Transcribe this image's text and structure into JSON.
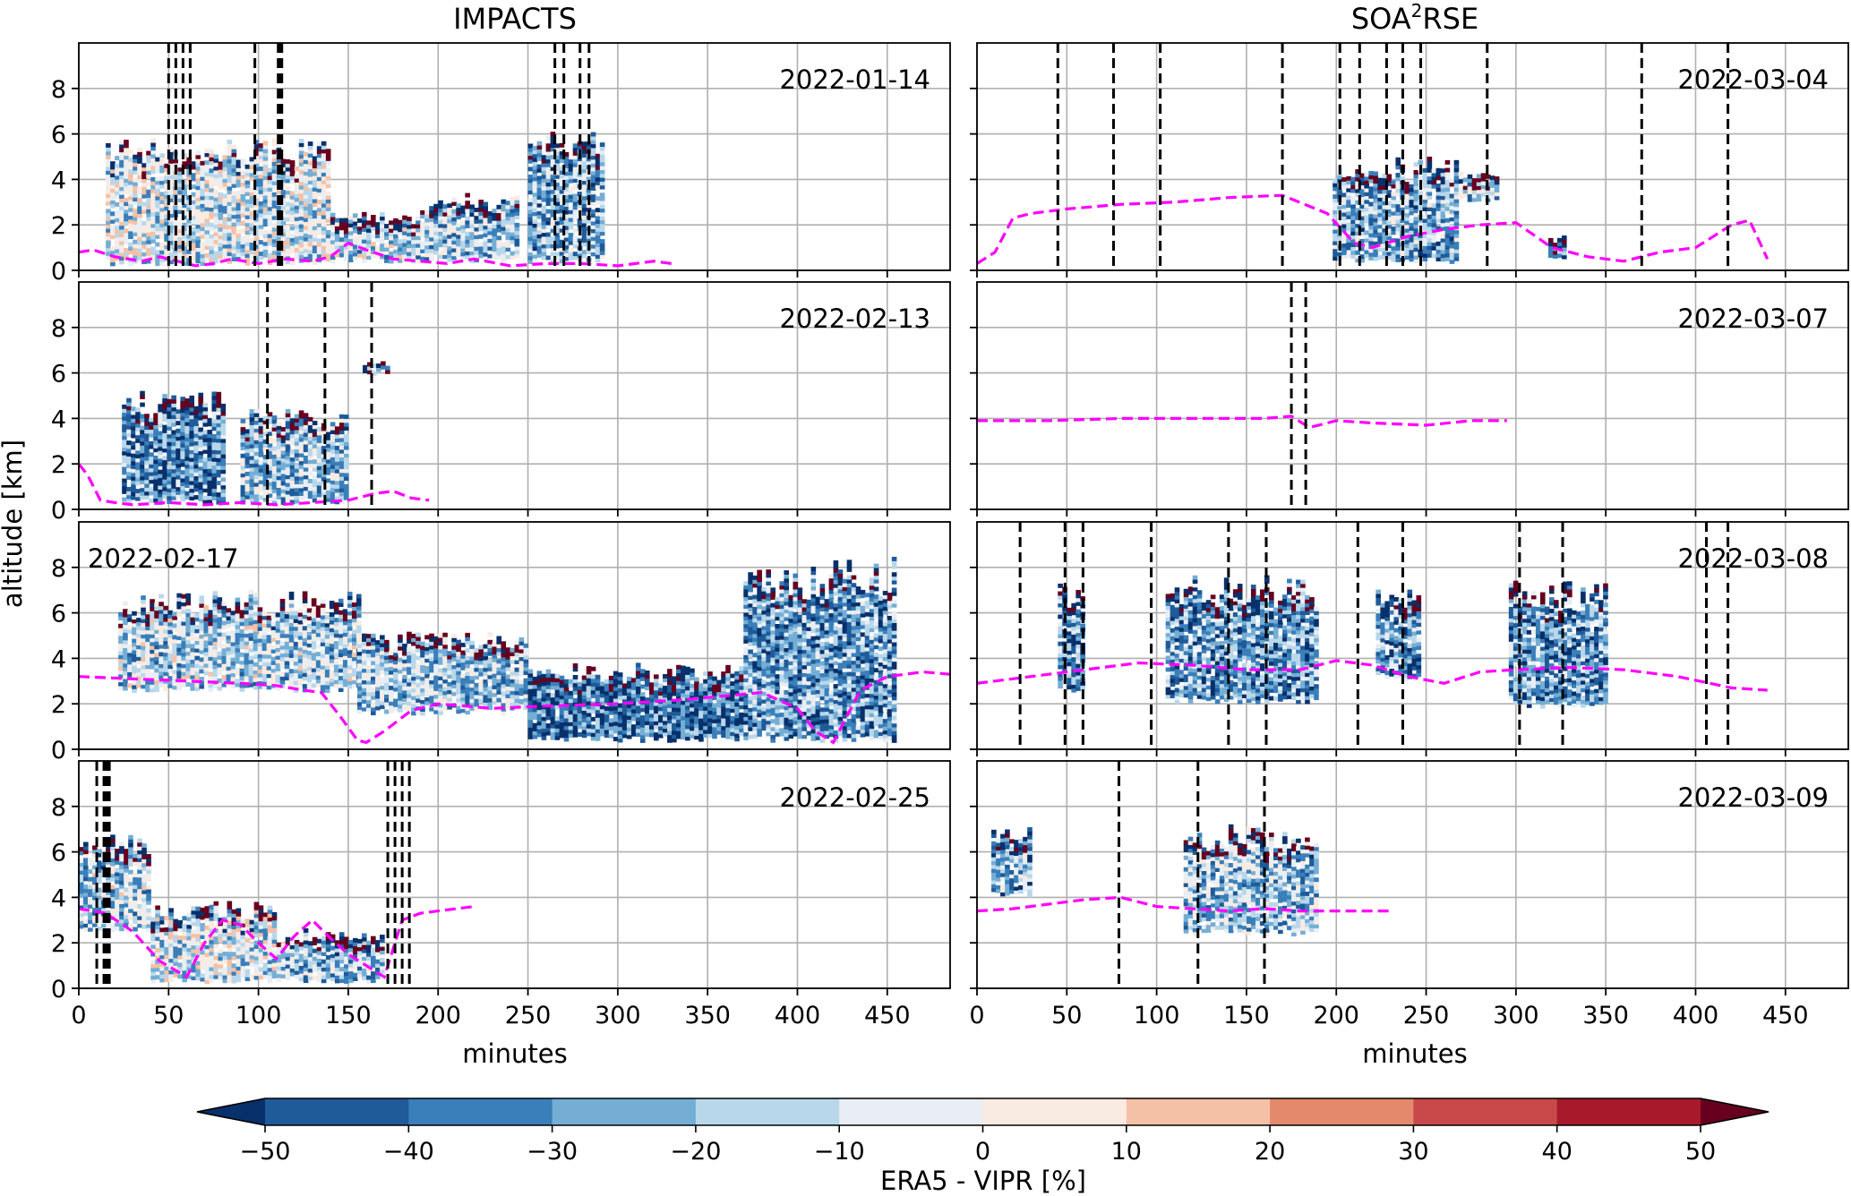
{
  "chart_data": {
    "type": "heatmap",
    "columns": [
      {
        "title": "IMPACTS",
        "title_sup": "",
        "title_rest": ""
      },
      {
        "title": "SOA",
        "title_sup": "2",
        "title_rest": "RSE"
      }
    ],
    "xlabel": "minutes",
    "ylabel": "altitude [km]",
    "xlim": [
      0,
      485
    ],
    "ylim": [
      0,
      10
    ],
    "xticks": [
      0,
      50,
      100,
      150,
      200,
      250,
      300,
      350,
      400,
      450
    ],
    "yticks": [
      0,
      2,
      4,
      6,
      8
    ],
    "grid": true,
    "colorbar": {
      "label": "ERA5 - VIPR [%]",
      "ticks": [
        -50,
        -40,
        -30,
        -20,
        -10,
        0,
        10,
        20,
        30,
        40,
        50
      ],
      "tick_labels": [
        "−50",
        "−40",
        "−30",
        "−20",
        "−10",
        "0",
        "10",
        "20",
        "30",
        "40",
        "50"
      ],
      "colors": [
        "#1f5b99",
        "#3a7fba",
        "#75aed4",
        "#b9d7ea",
        "#e8eef3",
        "#faebe2",
        "#f5c1a6",
        "#e5896c",
        "#c9494a",
        "#a8192c"
      ],
      "under_color": "#08306b",
      "over_color": "#67001f",
      "extend": "both",
      "orientation": "horizontal",
      "location": "bottom"
    },
    "panels": [
      {
        "column": 0,
        "row": 0,
        "date": "2022-01-14",
        "date_position": "top-right",
        "vlines": [
          50,
          54,
          58,
          62,
          98,
          111,
          112,
          113,
          265,
          270,
          279,
          284
        ],
        "freezing_level": {
          "x": [
            0,
            8,
            20,
            35,
            45,
            55,
            65,
            75,
            85,
            100,
            115,
            130,
            140,
            150,
            160,
            175,
            190,
            205,
            220,
            240,
            260,
            280,
            300,
            320,
            330
          ],
          "y": [
            0.8,
            0.9,
            0.6,
            0.4,
            0.6,
            0.4,
            0.2,
            0.3,
            0.5,
            0.3,
            0.5,
            0.4,
            0.6,
            1.2,
            0.9,
            0.5,
            0.4,
            0.3,
            0.5,
            0.2,
            0.3,
            0.3,
            0.2,
            0.4,
            0.3
          ]
        },
        "echo": [
          {
            "x": [
              15,
              140
            ],
            "y": [
              0.2,
              5.8
            ],
            "bias": -0.1
          },
          {
            "x": [
              140,
              190
            ],
            "y": [
              0.3,
              2.5
            ],
            "bias": -0.15
          },
          {
            "x": [
              190,
              245
            ],
            "y": [
              0.3,
              3.3
            ],
            "bias": -0.2
          },
          {
            "x": [
              250,
              292
            ],
            "y": [
              0.3,
              6.1
            ],
            "bias": -0.25
          }
        ]
      },
      {
        "column": 0,
        "row": 1,
        "date": "2022-02-13",
        "date_position": "top-right",
        "vlines": [
          105,
          137,
          163
        ],
        "freezing_level": {
          "x": [
            0,
            5,
            12,
            20,
            30,
            50,
            70,
            90,
            110,
            130,
            150,
            165,
            175,
            185,
            195
          ],
          "y": [
            2.0,
            1.5,
            0.4,
            0.3,
            0.2,
            0.3,
            0.2,
            0.3,
            0.2,
            0.3,
            0.4,
            0.7,
            0.8,
            0.5,
            0.4
          ]
        },
        "echo": [
          {
            "x": [
              24,
              80
            ],
            "y": [
              0.2,
              5.1
            ],
            "bias": -0.35
          },
          {
            "x": [
              90,
              150
            ],
            "y": [
              0.2,
              4.4
            ],
            "bias": -0.2
          },
          {
            "x": [
              158,
              172
            ],
            "y": [
              5.9,
              6.4
            ],
            "bias": -0.3
          }
        ]
      },
      {
        "column": 0,
        "row": 2,
        "date": "2022-02-17",
        "date_position": "top-left",
        "vlines": [],
        "freezing_level": {
          "x": [
            0,
            30,
            60,
            90,
            110,
            125,
            135,
            145,
            155,
            160,
            170,
            185,
            200,
            230,
            260,
            300,
            340,
            380,
            400,
            410,
            420,
            435,
            450,
            470,
            485
          ],
          "y": [
            3.2,
            3.1,
            3.0,
            2.9,
            2.8,
            2.6,
            2.5,
            1.5,
            0.4,
            0.3,
            0.8,
            1.7,
            2.0,
            1.8,
            1.9,
            2.0,
            2.2,
            2.5,
            1.8,
            0.8,
            0.3,
            2.6,
            3.2,
            3.4,
            3.3
          ]
        },
        "echo": [
          {
            "x": [
              22,
              155
            ],
            "y": [
              2.5,
              6.9
            ],
            "bias": -0.15
          },
          {
            "x": [
              155,
              250
            ],
            "y": [
              1.5,
              5.2
            ],
            "bias": -0.2
          },
          {
            "x": [
              250,
              370
            ],
            "y": [
              0.3,
              3.7
            ],
            "bias": -0.4
          },
          {
            "x": [
              370,
              455
            ],
            "y": [
              0.3,
              8.4
            ],
            "bias": -0.3
          }
        ]
      },
      {
        "column": 0,
        "row": 3,
        "date": "2022-02-25",
        "date_position": "top-right",
        "vlines": [
          10,
          14,
          15,
          16,
          17,
          172,
          176,
          180,
          184
        ],
        "freezing_level": {
          "x": [
            0,
            15,
            30,
            45,
            60,
            70,
            80,
            90,
            100,
            110,
            120,
            130,
            140,
            150,
            160,
            170,
            180,
            190,
            200,
            210,
            220
          ],
          "y": [
            3.5,
            3.3,
            2.5,
            1.2,
            0.5,
            2.0,
            3.0,
            2.8,
            2.0,
            1.3,
            2.3,
            3.0,
            2.2,
            1.5,
            1.0,
            0.5,
            3.0,
            3.3,
            3.4,
            3.5,
            3.6
          ]
        },
        "echo": [
          {
            "x": [
              0,
              40
            ],
            "y": [
              2.5,
              6.7
            ],
            "bias": -0.15
          },
          {
            "x": [
              40,
              110
            ],
            "y": [
              0.2,
              3.8
            ],
            "bias": -0.1
          },
          {
            "x": [
              110,
              170
            ],
            "y": [
              0.2,
              2.5
            ],
            "bias": -0.2
          }
        ]
      },
      {
        "column": 1,
        "row": 0,
        "date": "2022-03-04",
        "date_position": "top-right",
        "vlines": [
          45,
          76,
          102,
          170,
          202,
          213,
          228,
          237,
          247,
          284,
          370,
          418
        ],
        "freezing_level": {
          "x": [
            0,
            10,
            20,
            30,
            50,
            80,
            110,
            140,
            170,
            195,
            210,
            220,
            240,
            260,
            280,
            300,
            320,
            340,
            360,
            380,
            400,
            420,
            430,
            440
          ],
          "y": [
            0.3,
            0.8,
            2.3,
            2.5,
            2.7,
            2.9,
            3.0,
            3.2,
            3.3,
            2.5,
            1.2,
            1.0,
            1.5,
            1.8,
            2.0,
            2.1,
            1.0,
            0.6,
            0.4,
            0.8,
            1.0,
            2.0,
            2.2,
            0.5
          ]
        },
        "echo": [
          {
            "x": [
              198,
              268
            ],
            "y": [
              0.3,
              4.9
            ],
            "bias": -0.25
          },
          {
            "x": [
              268,
              290
            ],
            "y": [
              3.0,
              4.3
            ],
            "bias": -0.2
          },
          {
            "x": [
              318,
              326
            ],
            "y": [
              0.3,
              1.5
            ],
            "bias": -0.3
          }
        ]
      },
      {
        "column": 1,
        "row": 1,
        "date": "2022-03-07",
        "date_position": "top-right",
        "vlines": [
          175,
          183
        ],
        "freezing_level": {
          "x": [
            0,
            40,
            80,
            120,
            160,
            175,
            185,
            200,
            220,
            250,
            275,
            295
          ],
          "y": [
            3.9,
            3.9,
            4.0,
            4.0,
            4.0,
            4.1,
            3.6,
            3.9,
            3.8,
            3.7,
            3.9,
            3.9
          ]
        },
        "echo": []
      },
      {
        "column": 1,
        "row": 2,
        "date": "2022-03-08",
        "date_position": "top-right",
        "vlines": [
          24,
          49,
          59,
          97,
          140,
          161,
          212,
          237,
          302,
          326,
          406,
          418
        ],
        "freezing_level": {
          "x": [
            0,
            30,
            60,
            90,
            120,
            150,
            180,
            200,
            220,
            240,
            260,
            280,
            300,
            330,
            360,
            390,
            420,
            440
          ],
          "y": [
            2.9,
            3.2,
            3.5,
            3.8,
            3.7,
            3.5,
            3.5,
            3.9,
            3.7,
            3.2,
            2.9,
            3.4,
            3.5,
            3.6,
            3.5,
            3.2,
            2.7,
            2.6
          ]
        },
        "echo": [
          {
            "x": [
              45,
              60
            ],
            "y": [
              2.5,
              7.6
            ],
            "bias": -0.3
          },
          {
            "x": [
              105,
              190
            ],
            "y": [
              2.0,
              7.6
            ],
            "bias": -0.3
          },
          {
            "x": [
              222,
              245
            ],
            "y": [
              3.0,
              7.0
            ],
            "bias": -0.3
          },
          {
            "x": [
              296,
              350
            ],
            "y": [
              1.8,
              7.3
            ],
            "bias": -0.3
          }
        ]
      },
      {
        "column": 1,
        "row": 3,
        "date": "2022-03-09",
        "date_position": "top-right",
        "vlines": [
          79,
          123,
          160
        ],
        "freezing_level": {
          "x": [
            0,
            20,
            40,
            60,
            80,
            100,
            120,
            140,
            160,
            180,
            200,
            230
          ],
          "y": [
            3.4,
            3.5,
            3.7,
            3.9,
            4.0,
            3.6,
            3.5,
            3.4,
            3.5,
            3.4,
            3.4,
            3.4
          ]
        },
        "echo": [
          {
            "x": [
              8,
              30
            ],
            "y": [
              4.0,
              7.2
            ],
            "bias": -0.25
          },
          {
            "x": [
              115,
              190
            ],
            "y": [
              2.3,
              7.2
            ],
            "bias": -0.2
          }
        ]
      }
    ]
  }
}
